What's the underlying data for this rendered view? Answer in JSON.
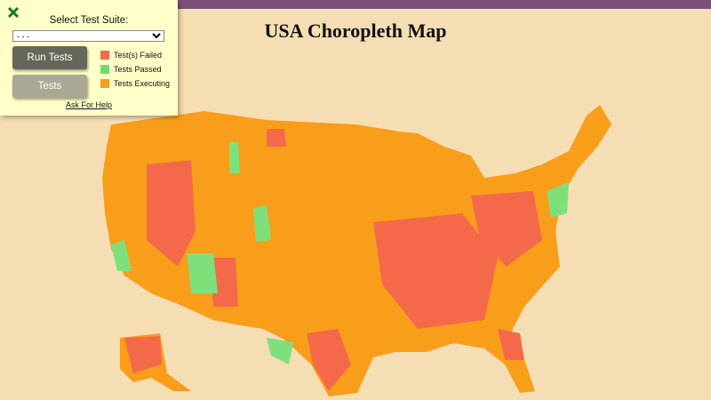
{
  "header": {
    "title": "USA Choropleth Map"
  },
  "panel": {
    "select_label": "Select Test Suite:",
    "select_option": "- - -",
    "buttons": [
      "Run Tests",
      "Tests"
    ],
    "legend": [
      "Test(s) Failed",
      "Tests Passed",
      "Tests Executing"
    ],
    "help_link": "Ask For Help"
  }
}
